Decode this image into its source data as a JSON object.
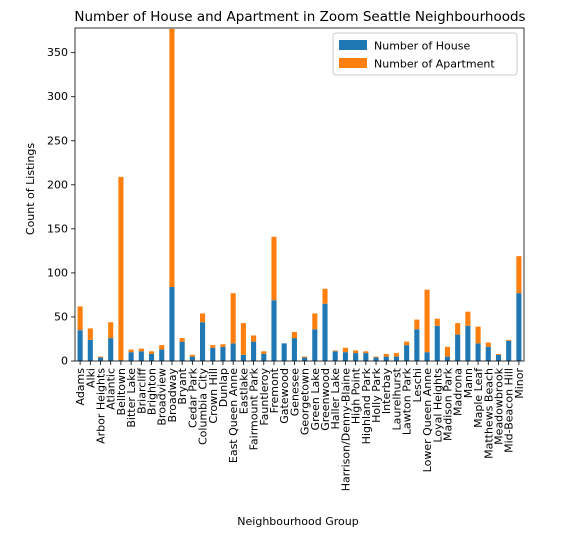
{
  "chart_data": {
    "type": "bar",
    "stacked": true,
    "title": "Number of House and Apartment in Zoom Seattle Neighbourhoods",
    "xlabel": "Neighbourhood Group",
    "ylabel": "Count of Listings",
    "ylim": [
      0,
      378
    ],
    "yticks": [
      0,
      50,
      100,
      150,
      200,
      250,
      300,
      350
    ],
    "grid": false,
    "legend_position": "top-right",
    "categories": [
      "Adams",
      "Alki",
      "Arbor Heights",
      "Atlantic",
      "Belltown",
      "Bitter Lake",
      "Briarcliff",
      "Brighton",
      "Broadview",
      "Broadway",
      "Bryant",
      "Cedar Park",
      "Columbia City",
      "Crown Hill",
      "Dunlap",
      "East Queen Anne",
      "Eastlake",
      "Fairmount Park",
      "Fauntleroy",
      "Fremont",
      "Gatewood",
      "Genesee",
      "Georgetown",
      "Green Lake",
      "Greenwood",
      "Haller Lake",
      "Harrison/Denny-Blaine",
      "High Point",
      "Highland Park",
      "Holly Park",
      "Interbay",
      "Laurelhurst",
      "Lawton Park",
      "Leschi",
      "Lower Queen Anne",
      "Loyal Heights",
      "Madison Park",
      "Madrona",
      "Mann",
      "Maple Leaf",
      "Matthews Beach",
      "Meadowbrook",
      "Mid-Beacon Hill",
      "Minor"
    ],
    "series": [
      {
        "name": "Number of House",
        "color": "#1f77b4",
        "values": [
          35,
          24,
          4,
          26,
          1,
          10,
          11,
          8,
          13,
          84,
          22,
          5,
          44,
          15,
          16,
          20,
          7,
          22,
          8,
          69,
          20,
          26,
          4,
          36,
          65,
          11,
          10,
          9,
          9,
          4,
          5,
          5,
          18,
          36,
          10,
          40,
          5,
          30,
          40,
          20,
          16,
          7,
          23,
          77
        ]
      },
      {
        "name": "Number of Apartment",
        "color": "#ff7f0e",
        "values": [
          27,
          13,
          1,
          18,
          208,
          3,
          3,
          3,
          5,
          293,
          4,
          2,
          10,
          3,
          3,
          57,
          36,
          7,
          3,
          72,
          0,
          7,
          1,
          18,
          17,
          1,
          5,
          3,
          2,
          1,
          3,
          4,
          4,
          11,
          71,
          8,
          11,
          13,
          16,
          19,
          5,
          1,
          1,
          42
        ]
      }
    ]
  }
}
